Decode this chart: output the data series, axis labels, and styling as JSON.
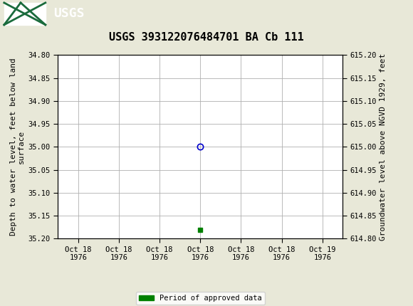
{
  "title": "USGS 393122076484701 BA Cb 111",
  "ylabel_left": "Depth to water level, feet below land\nsurface",
  "ylabel_right": "Groundwater level above NGVD 1929, feet",
  "ylim_left_top": 34.8,
  "ylim_left_bottom": 35.2,
  "ylim_right_top": 615.2,
  "ylim_right_bottom": 614.8,
  "yticks_left": [
    34.8,
    34.85,
    34.9,
    34.95,
    35.0,
    35.05,
    35.1,
    35.15,
    35.2
  ],
  "yticks_right": [
    615.2,
    615.15,
    615.1,
    615.05,
    615.0,
    614.95,
    614.9,
    614.85,
    614.8
  ],
  "x_data_open": 3.0,
  "y_data_open": 35.0,
  "x_data_square": 3.0,
  "y_data_square": 35.18,
  "open_marker_color": "#0000cc",
  "square_marker_color": "#008000",
  "plot_bg": "#e8e8d8",
  "header_bg": "#1a6b3c",
  "grid_color": "#b0b0b0",
  "axis_bg": "#ffffff",
  "legend_label": "Period of approved data",
  "legend_color": "#008000",
  "xtick_labels": [
    "Oct 18\n1976",
    "Oct 18\n1976",
    "Oct 18\n1976",
    "Oct 18\n1976",
    "Oct 18\n1976",
    "Oct 18\n1976",
    "Oct 19\n1976"
  ],
  "xtick_positions": [
    0,
    1,
    2,
    3,
    4,
    5,
    6
  ],
  "xlim": [
    -0.5,
    6.5
  ],
  "font_family": "monospace",
  "title_fontsize": 11,
  "tick_fontsize": 7.5,
  "label_fontsize": 8
}
